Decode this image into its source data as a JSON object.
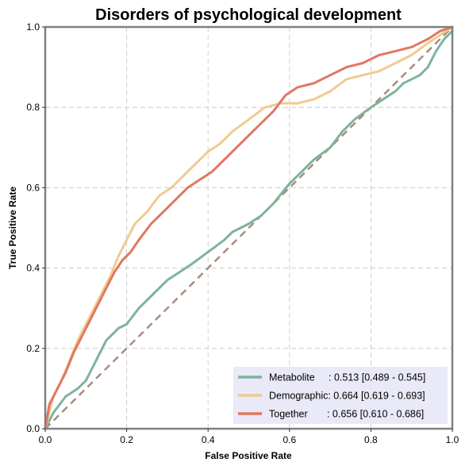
{
  "chart_data": {
    "type": "line",
    "title": "Disorders of psychological development",
    "xlabel": "False Positive Rate",
    "ylabel": "True Positive Rate",
    "xlim": [
      0,
      1
    ],
    "ylim": [
      0,
      1
    ],
    "xticks": [
      "0.0",
      "0.2",
      "0.4",
      "0.6",
      "0.8",
      "1.0"
    ],
    "yticks": [
      "0.0",
      "0.2",
      "0.4",
      "0.6",
      "0.8",
      "1.0"
    ],
    "grid": true,
    "legend_position": "bottom-right",
    "diagonal": {
      "x": [
        0,
        1
      ],
      "y": [
        0,
        1
      ],
      "style": "dashed",
      "color": "#a88c80"
    },
    "series": [
      {
        "name": "Metabolite",
        "label": "Metabolite     : 0.513 [0.489 - 0.545]",
        "color": "#7fb39a",
        "x": [
          0,
          0.02,
          0.05,
          0.08,
          0.1,
          0.12,
          0.15,
          0.18,
          0.2,
          0.23,
          0.26,
          0.3,
          0.33,
          0.36,
          0.4,
          0.44,
          0.46,
          0.5,
          0.53,
          0.56,
          0.6,
          0.63,
          0.66,
          0.7,
          0.73,
          0.76,
          0.8,
          0.83,
          0.86,
          0.88,
          0.9,
          0.92,
          0.94,
          0.96,
          0.98,
          1.0
        ],
        "y": [
          0,
          0.04,
          0.08,
          0.1,
          0.12,
          0.16,
          0.22,
          0.25,
          0.26,
          0.3,
          0.33,
          0.37,
          0.39,
          0.41,
          0.44,
          0.47,
          0.49,
          0.51,
          0.53,
          0.56,
          0.61,
          0.64,
          0.67,
          0.7,
          0.74,
          0.77,
          0.8,
          0.82,
          0.84,
          0.86,
          0.87,
          0.88,
          0.9,
          0.94,
          0.97,
          0.99
        ]
      },
      {
        "name": "Demographic",
        "label": "Demographic: 0.664 [0.619 - 0.693]",
        "color": "#f0cb8f",
        "x": [
          0,
          0.02,
          0.04,
          0.06,
          0.08,
          0.1,
          0.12,
          0.14,
          0.16,
          0.18,
          0.2,
          0.22,
          0.25,
          0.28,
          0.31,
          0.34,
          0.37,
          0.4,
          0.43,
          0.46,
          0.5,
          0.54,
          0.58,
          0.62,
          0.66,
          0.7,
          0.74,
          0.78,
          0.82,
          0.86,
          0.9,
          0.94,
          0.97,
          1.0
        ],
        "y": [
          0,
          0.08,
          0.12,
          0.17,
          0.22,
          0.26,
          0.3,
          0.34,
          0.38,
          0.43,
          0.47,
          0.51,
          0.54,
          0.58,
          0.6,
          0.63,
          0.66,
          0.69,
          0.71,
          0.74,
          0.77,
          0.8,
          0.81,
          0.81,
          0.82,
          0.84,
          0.87,
          0.88,
          0.89,
          0.91,
          0.93,
          0.96,
          0.98,
          1.0
        ]
      },
      {
        "name": "Together",
        "label": "Together       : 0.656 [0.610 - 0.686]",
        "color": "#e07762",
        "x": [
          0,
          0.01,
          0.03,
          0.05,
          0.07,
          0.09,
          0.11,
          0.13,
          0.15,
          0.17,
          0.19,
          0.21,
          0.23,
          0.26,
          0.29,
          0.32,
          0.35,
          0.38,
          0.41,
          0.44,
          0.47,
          0.5,
          0.53,
          0.56,
          0.59,
          0.62,
          0.66,
          0.7,
          0.74,
          0.78,
          0.82,
          0.86,
          0.9,
          0.94,
          0.97,
          1.0
        ],
        "y": [
          0,
          0.06,
          0.1,
          0.14,
          0.19,
          0.23,
          0.27,
          0.31,
          0.35,
          0.39,
          0.42,
          0.44,
          0.47,
          0.51,
          0.54,
          0.57,
          0.6,
          0.62,
          0.64,
          0.67,
          0.7,
          0.73,
          0.76,
          0.79,
          0.83,
          0.85,
          0.86,
          0.88,
          0.9,
          0.91,
          0.93,
          0.94,
          0.95,
          0.97,
          0.99,
          1.0
        ]
      }
    ]
  }
}
